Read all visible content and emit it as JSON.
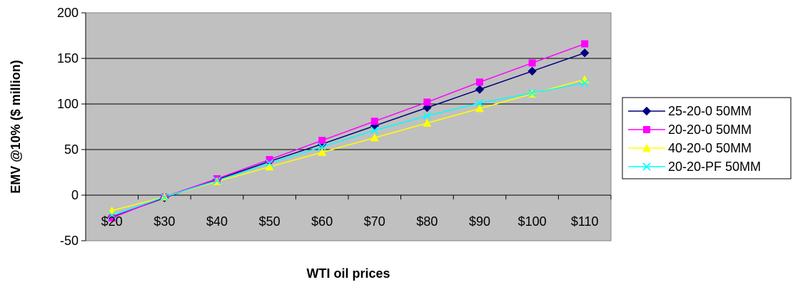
{
  "chart_data": {
    "type": "line",
    "title": "",
    "xlabel": "WTI oil prices",
    "ylabel": "EMV @10% ($ million)",
    "categories": [
      "$20",
      "$30",
      "$40",
      "$50",
      "$60",
      "$70",
      "$80",
      "$90",
      "$100",
      "$110"
    ],
    "ylim": [
      -50,
      200
    ],
    "yticks": [
      -50,
      0,
      50,
      100,
      150,
      200
    ],
    "grid": true,
    "legend_position": "right",
    "plot_background": "#c0c0c0",
    "series": [
      {
        "name": "25-20-0 50MM",
        "color": "#000080",
        "marker": "diamond",
        "values": [
          -24,
          -3,
          17,
          37,
          56,
          76,
          96,
          116,
          136,
          156
        ]
      },
      {
        "name": "20-20-0 50MM",
        "color": "#ff00ff",
        "marker": "square",
        "values": [
          -25,
          -2,
          18,
          39,
          60,
          81,
          102,
          124,
          145,
          166
        ]
      },
      {
        "name": "40-20-0 50MM",
        "color": "#ffff00",
        "marker": "triangle",
        "values": [
          -17,
          -2,
          15,
          31,
          47,
          63,
          79,
          95,
          111,
          127
        ]
      },
      {
        "name": "20-20-PF 50MM",
        "color": "#00ffff",
        "marker": "x",
        "values": [
          -22,
          -2,
          16,
          35,
          53,
          71,
          87,
          101,
          112,
          123
        ]
      }
    ]
  }
}
